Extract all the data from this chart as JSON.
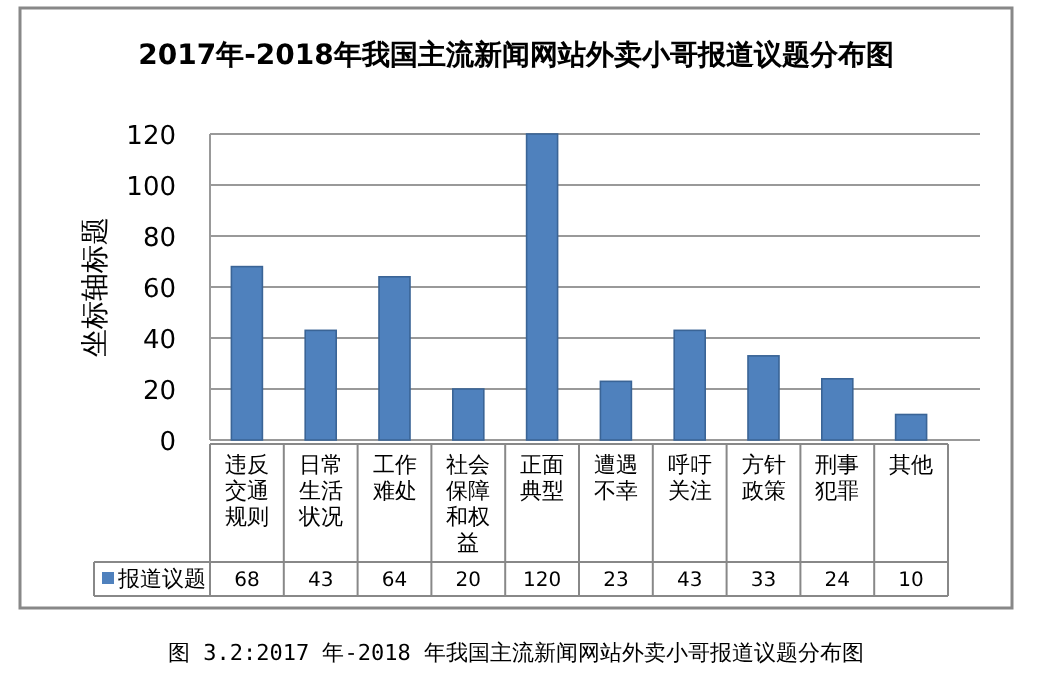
{
  "chart_data": {
    "type": "bar",
    "title": "2017年-2018年我国主流新闻网站外卖小哥报道议题分布图",
    "ylabel": "坐标轴标题",
    "categories": [
      "违反交通规则",
      "日常生活状况",
      "工作难处",
      "社会保障和权益",
      "正面典型",
      "遭遇不幸",
      "呼吁关注",
      "方针政策",
      "刑事犯罪",
      "其他"
    ],
    "series": [
      {
        "name": "报道议题",
        "color": "#4f81bd",
        "values": [
          68,
          43,
          64,
          20,
          120,
          23,
          43,
          33,
          24,
          10
        ]
      }
    ],
    "ylim": [
      0,
      120
    ],
    "yticks": [
      0,
      20,
      40,
      60,
      80,
      100,
      120
    ],
    "grid": "y",
    "legend": "bottom",
    "data_labels": true,
    "annotations": [
      "图 3.2:2017 年-2018 年我国主流新闻网站外卖小哥报道议题分布图"
    ]
  }
}
